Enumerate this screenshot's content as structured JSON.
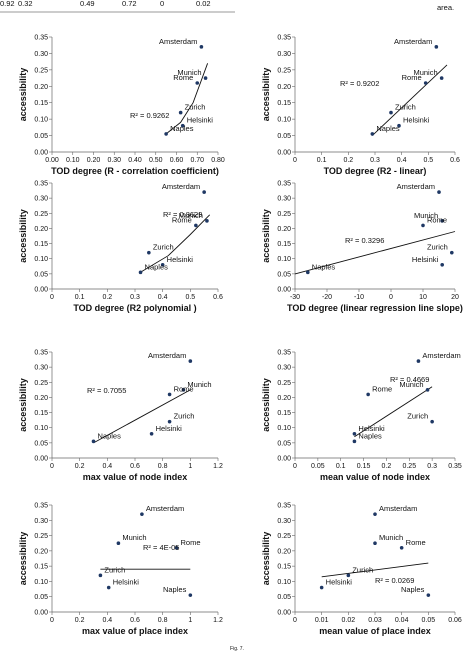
{
  "header": {
    "row": [
      "0.92",
      "0.32",
      "0.49",
      "0.72",
      "0",
      "0.02"
    ],
    "fragment": "area."
  },
  "caption": "Fig. 7.",
  "chart_data": [
    {
      "type": "scatter",
      "x_label": "TOD degree (R - correlation coefficient)",
      "y_label": "accessibility",
      "color": "#1f3864",
      "point_labels": [
        "Amsterdam",
        "Munich",
        "Rome",
        "Zurich",
        "Helsinki",
        "Naples"
      ],
      "x": [
        0.72,
        0.74,
        0.7,
        0.62,
        0.63,
        0.55
      ],
      "values": [
        0.32,
        0.225,
        0.21,
        0.12,
        0.08,
        0.055
      ],
      "xlim": [
        0,
        0.8
      ],
      "xticks": [
        {
          "value": 0,
          "label": "0.00"
        },
        {
          "value": 0.1,
          "label": "0.10"
        },
        {
          "value": 0.2,
          "label": "0.20"
        },
        {
          "value": 0.3,
          "label": "0.30"
        },
        {
          "value": 0.4,
          "label": "0.40"
        },
        {
          "value": 0.5,
          "label": "0.50"
        },
        {
          "value": 0.6,
          "label": "0.60"
        },
        {
          "value": 0.7,
          "label": "0.70"
        },
        {
          "value": 0.8,
          "label": "0.80"
        }
      ],
      "ylim": [
        0,
        0.35
      ],
      "yticks": [
        {
          "value": 0,
          "label": "0.00"
        },
        0.05,
        {
          "value": 0.1,
          "label": "0.10"
        },
        0.15,
        {
          "value": 0.2,
          "label": "0.20"
        },
        0.25,
        {
          "value": 0.3,
          "label": "0.30"
        },
        0.35
      ],
      "annotation": "R² = 0.9262",
      "trendline": {
        "x": [
          0.55,
          0.62,
          0.68,
          0.75
        ],
        "y": [
          0.055,
          0.09,
          0.15,
          0.27
        ]
      }
    },
    {
      "type": "scatter",
      "x_label": "TOD degree (R2 - linear)",
      "y_label": "accessibility",
      "color": "#1f3864",
      "point_labels": [
        "Amsterdam",
        "Munich",
        "Rome",
        "Zurich",
        "Helsinki",
        "Naples"
      ],
      "x": [
        0.53,
        0.55,
        0.49,
        0.36,
        0.39,
        0.29
      ],
      "values": [
        0.32,
        0.225,
        0.21,
        0.12,
        0.08,
        0.055
      ],
      "xlim": [
        0,
        0.6
      ],
      "xticks": [
        0,
        0.1,
        0.2,
        0.3,
        0.4,
        0.5,
        0.6
      ],
      "ylim": [
        0,
        0.35
      ],
      "yticks": [
        {
          "value": 0,
          "label": "0.00"
        },
        0.05,
        {
          "value": 0.1,
          "label": "0.10"
        },
        0.15,
        {
          "value": 0.2,
          "label": "0.20"
        },
        0.25,
        {
          "value": 0.3,
          "label": "0.30"
        },
        0.35
      ],
      "annotation": "R² = 0.9202",
      "trendline": {
        "x": [
          0.29,
          0.57
        ],
        "y": [
          0.05,
          0.265
        ]
      }
    },
    {
      "type": "scatter",
      "x_label": "TOD degree (R2 polynomial )",
      "y_label": "accessibility",
      "color": "#1f3864",
      "point_labels": [
        "Amsterdam",
        "Munich",
        "Rome",
        "Zurich",
        "Helsinki",
        "Naples"
      ],
      "x": [
        0.55,
        0.56,
        0.52,
        0.35,
        0.4,
        0.32
      ],
      "values": [
        0.32,
        0.225,
        0.21,
        0.12,
        0.08,
        0.055
      ],
      "xlim": [
        0,
        0.6
      ],
      "xticks": [
        0,
        0.1,
        0.2,
        0.3,
        0.4,
        0.5,
        0.6
      ],
      "ylim": [
        0,
        0.35
      ],
      "yticks": [
        {
          "value": 0,
          "label": "0.00"
        },
        0.05,
        {
          "value": 0.1,
          "label": "0.10"
        },
        0.15,
        {
          "value": 0.2,
          "label": "0.20"
        },
        0.25,
        {
          "value": 0.3,
          "label": "0.30"
        },
        0.35
      ],
      "annotation": "R² = 0.8629",
      "trendline": {
        "x": [
          0.32,
          0.42,
          0.5,
          0.57
        ],
        "y": [
          0.055,
          0.11,
          0.18,
          0.245
        ]
      }
    },
    {
      "type": "scatter",
      "x_label": "TOD degree (linear regression line slope)",
      "y_label": "accessibility",
      "color": "#1f3864",
      "point_labels": [
        "Amsterdam",
        "Munich",
        "Rome",
        "Zurich",
        "Helsinki",
        "Naples"
      ],
      "x": [
        15,
        16,
        10,
        19,
        16,
        -26
      ],
      "values": [
        0.32,
        0.225,
        0.21,
        0.12,
        0.08,
        0.055
      ],
      "xlim": [
        -30,
        20
      ],
      "xticks": [
        -30,
        -20,
        -10,
        0,
        10,
        20
      ],
      "ylim": [
        0,
        0.35
      ],
      "yticks": [
        {
          "value": 0,
          "label": "0.00"
        },
        0.05,
        {
          "value": 0.1,
          "label": "0.10"
        },
        0.15,
        {
          "value": 0.2,
          "label": "0.20"
        },
        0.25,
        {
          "value": 0.3,
          "label": "0.30"
        },
        0.35
      ],
      "annotation": "R² = 0.3296",
      "trendline": {
        "x": [
          -30,
          20
        ],
        "y": [
          0.05,
          0.19
        ]
      }
    },
    {
      "type": "scatter",
      "x_label": "max value of node index",
      "y_label": "accessibility",
      "color": "#1f3864",
      "point_labels": [
        "Amsterdam",
        "Munich",
        "Rome",
        "Zurich",
        "Helsinki",
        "Naples"
      ],
      "x": [
        1.0,
        0.95,
        0.85,
        0.85,
        0.72,
        0.3
      ],
      "values": [
        0.32,
        0.225,
        0.21,
        0.12,
        0.08,
        0.055
      ],
      "xlim": [
        0,
        1.2
      ],
      "xticks": [
        0,
        0.2,
        0.4,
        0.6,
        0.8,
        1,
        1.2
      ],
      "ylim": [
        0,
        0.35
      ],
      "yticks": [
        {
          "value": 0,
          "label": "0.00"
        },
        0.05,
        {
          "value": 0.1,
          "label": "0.10"
        },
        0.15,
        {
          "value": 0.2,
          "label": "0.20"
        },
        0.25,
        {
          "value": 0.3,
          "label": "0.30"
        },
        0.35
      ],
      "annotation": "R² = 0.7055",
      "trendline": {
        "x": [
          0.3,
          1.0
        ],
        "y": [
          0.05,
          0.225
        ]
      }
    },
    {
      "type": "scatter",
      "x_label": "mean value of node index",
      "y_label": "accessibility",
      "color": "#1f3864",
      "point_labels": [
        "Amsterdam",
        "Munich",
        "Rome",
        "Zurich",
        "Helsinki",
        "Naples"
      ],
      "x": [
        0.27,
        0.29,
        0.16,
        0.3,
        0.13,
        0.13
      ],
      "values": [
        0.32,
        0.225,
        0.21,
        0.12,
        0.08,
        0.055
      ],
      "xlim": [
        0,
        0.35
      ],
      "xticks": [
        0,
        0.05,
        0.1,
        0.15,
        0.2,
        0.25,
        0.3,
        0.35
      ],
      "ylim": [
        0,
        0.35
      ],
      "yticks": [
        {
          "value": 0,
          "label": "0.00"
        },
        0.05,
        {
          "value": 0.1,
          "label": "0.10"
        },
        0.15,
        {
          "value": 0.2,
          "label": "0.20"
        },
        0.25,
        {
          "value": 0.3,
          "label": "0.30"
        },
        0.35
      ],
      "annotation": "R² = 0.4669",
      "trendline": {
        "x": [
          0.13,
          0.3
        ],
        "y": [
          0.07,
          0.235
        ]
      }
    },
    {
      "type": "scatter",
      "x_label": "max value of place index",
      "y_label": "accessibility",
      "color": "#1f3864",
      "point_labels": [
        "Amsterdam",
        "Munich",
        "Rome",
        "Zurich",
        "Helsinki",
        "Naples"
      ],
      "x": [
        0.65,
        0.48,
        0.9,
        0.35,
        0.41,
        1.0
      ],
      "values": [
        0.32,
        0.225,
        0.21,
        0.12,
        0.08,
        0.055
      ],
      "xlim": [
        0,
        1.2
      ],
      "xticks": [
        0,
        0.2,
        0.4,
        0.6,
        0.8,
        1,
        1.2
      ],
      "ylim": [
        0,
        0.35
      ],
      "yticks": [
        {
          "value": 0,
          "label": "0.00"
        },
        0.05,
        {
          "value": 0.1,
          "label": "0.10"
        },
        0.15,
        {
          "value": 0.2,
          "label": "0.20"
        },
        0.25,
        {
          "value": 0.3,
          "label": "0.30"
        },
        0.35
      ],
      "annotation": "R² = 4E-05",
      "trendline": {
        "x": [
          0.35,
          1.0
        ],
        "y": [
          0.14,
          0.14
        ]
      }
    },
    {
      "type": "scatter",
      "x_label": "mean value of place index",
      "y_label": "accessibility",
      "color": "#1f3864",
      "point_labels": [
        "Amsterdam",
        "Munich",
        "Rome",
        "Zurich",
        "Helsinki",
        "Naples"
      ],
      "x": [
        0.03,
        0.03,
        0.04,
        0.02,
        0.01,
        0.05
      ],
      "values": [
        0.32,
        0.225,
        0.21,
        0.12,
        0.08,
        0.055
      ],
      "xlim": [
        0,
        0.06
      ],
      "xticks": [
        0,
        0.01,
        0.02,
        0.03,
        0.04,
        0.05,
        0.06
      ],
      "ylim": [
        0,
        0.35
      ],
      "yticks": [
        {
          "value": 0,
          "label": "0.00"
        },
        0.05,
        {
          "value": 0.1,
          "label": "0.10"
        },
        0.15,
        {
          "value": 0.2,
          "label": "0.20"
        },
        0.25,
        {
          "value": 0.3,
          "label": "0.30"
        },
        0.35
      ],
      "annotation": "R² = 0.0269",
      "trendline": {
        "x": [
          0.01,
          0.05
        ],
        "y": [
          0.115,
          0.16
        ]
      }
    }
  ]
}
